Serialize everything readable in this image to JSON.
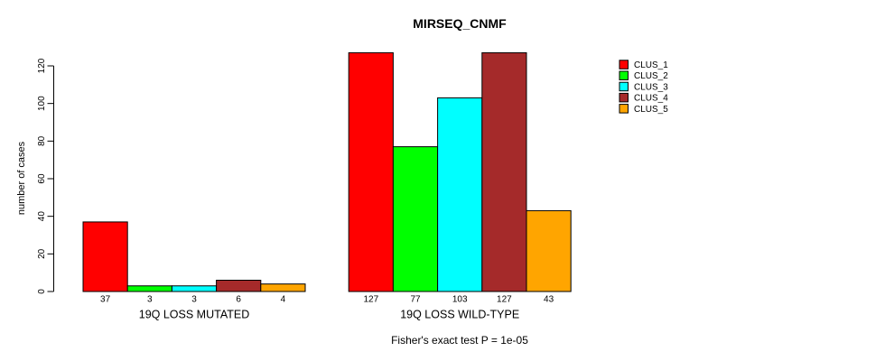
{
  "chart_data": {
    "type": "bar",
    "title": "MIRSEQ_CNMF",
    "ylabel": "number of cases",
    "xlabel": "",
    "ylim": [
      0,
      120
    ],
    "yticks": [
      0,
      20,
      40,
      60,
      80,
      100,
      120
    ],
    "categories": [
      "19Q LOSS MUTATED",
      "19Q LOSS WILD-TYPE"
    ],
    "series": [
      {
        "name": "CLUS_1",
        "color": "#FF0000",
        "values": [
          37,
          127
        ]
      },
      {
        "name": "CLUS_2",
        "color": "#00FF00",
        "values": [
          3,
          77
        ]
      },
      {
        "name": "CLUS_3",
        "color": "#00FFFF",
        "values": [
          3,
          103
        ]
      },
      {
        "name": "CLUS_4",
        "color": "#A52A2A",
        "values": [
          6,
          127
        ]
      },
      {
        "name": "CLUS_5",
        "color": "#FFA500",
        "values": [
          4,
          43
        ]
      }
    ],
    "bar_value_labels_shown": true,
    "annotation": "Fisher's exact test P = 1e-05",
    "legend_position": "top-right",
    "grid": false,
    "bar_border_color": "#000000",
    "axis_color": "#000000",
    "background_color": "#FFFFFF"
  }
}
